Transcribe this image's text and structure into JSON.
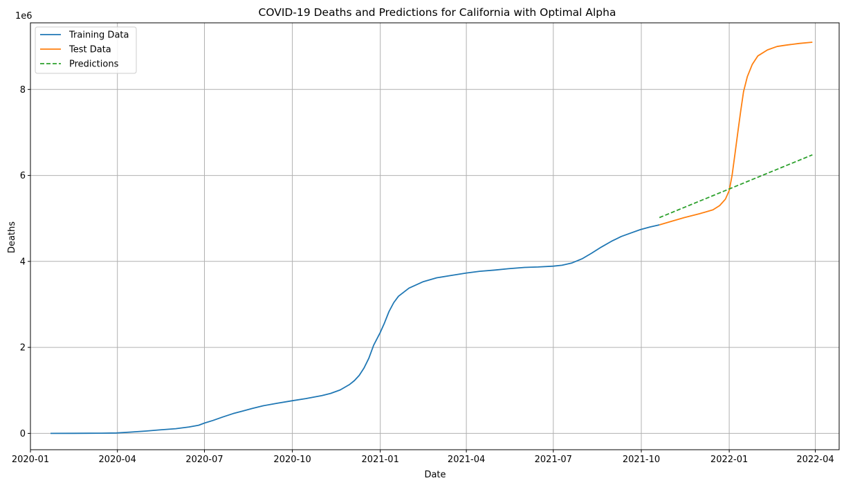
{
  "chart_data": {
    "type": "line",
    "title": "COVID-19 Deaths and Predictions for California with Optimal Alpha",
    "xlabel": "Date",
    "ylabel": "Deaths",
    "y_offset_label": "1e6",
    "y_scale_factor": 1000000,
    "xlim": [
      "2020-01-01",
      "2022-04-26"
    ],
    "ylim": [
      -380000,
      9550000
    ],
    "x_ticks": [
      "2020-01-01",
      "2020-04-01",
      "2020-07-01",
      "2020-10-01",
      "2021-01-01",
      "2021-04-01",
      "2021-07-01",
      "2021-10-01",
      "2022-01-01",
      "2022-04-01"
    ],
    "x_tick_labels": [
      "2020-01",
      "2020-04",
      "2020-07",
      "2020-10",
      "2021-01",
      "2021-04",
      "2021-07",
      "2021-10",
      "2022-01",
      "2022-04"
    ],
    "y_ticks": [
      0,
      2000000,
      4000000,
      6000000,
      8000000
    ],
    "y_tick_labels": [
      "0",
      "2",
      "4",
      "6",
      "8"
    ],
    "grid": true,
    "legend_position": "top-left",
    "series": [
      {
        "name": "Training Data",
        "color": "#1f77b4",
        "style": "solid",
        "points": [
          [
            "2020-01-22",
            0
          ],
          [
            "2020-02-15",
            1000
          ],
          [
            "2020-03-15",
            5000
          ],
          [
            "2020-03-31",
            10000
          ],
          [
            "2020-04-15",
            30000
          ],
          [
            "2020-05-01",
            55000
          ],
          [
            "2020-05-15",
            80000
          ],
          [
            "2020-06-01",
            110000
          ],
          [
            "2020-06-15",
            150000
          ],
          [
            "2020-06-25",
            190000
          ],
          [
            "2020-07-01",
            240000
          ],
          [
            "2020-07-10",
            300000
          ],
          [
            "2020-07-20",
            380000
          ],
          [
            "2020-07-31",
            460000
          ],
          [
            "2020-08-10",
            520000
          ],
          [
            "2020-08-20",
            580000
          ],
          [
            "2020-08-31",
            640000
          ],
          [
            "2020-09-15",
            700000
          ],
          [
            "2020-10-01",
            760000
          ],
          [
            "2020-10-15",
            810000
          ],
          [
            "2020-11-01",
            880000
          ],
          [
            "2020-11-10",
            930000
          ],
          [
            "2020-11-20",
            1010000
          ],
          [
            "2020-11-30",
            1140000
          ],
          [
            "2020-12-05",
            1230000
          ],
          [
            "2020-12-10",
            1350000
          ],
          [
            "2020-12-15",
            1520000
          ],
          [
            "2020-12-20",
            1750000
          ],
          [
            "2020-12-25",
            2050000
          ],
          [
            "2021-01-01",
            2350000
          ],
          [
            "2021-01-05",
            2550000
          ],
          [
            "2021-01-10",
            2830000
          ],
          [
            "2021-01-15",
            3040000
          ],
          [
            "2021-01-20",
            3190000
          ],
          [
            "2021-01-31",
            3380000
          ],
          [
            "2021-02-15",
            3530000
          ],
          [
            "2021-03-01",
            3620000
          ],
          [
            "2021-03-15",
            3670000
          ],
          [
            "2021-04-01",
            3730000
          ],
          [
            "2021-04-15",
            3770000
          ],
          [
            "2021-05-01",
            3800000
          ],
          [
            "2021-05-15",
            3830000
          ],
          [
            "2021-06-01",
            3860000
          ],
          [
            "2021-06-15",
            3870000
          ],
          [
            "2021-07-01",
            3890000
          ],
          [
            "2021-07-10",
            3910000
          ],
          [
            "2021-07-20",
            3960000
          ],
          [
            "2021-07-31",
            4060000
          ],
          [
            "2021-08-10",
            4190000
          ],
          [
            "2021-08-20",
            4330000
          ],
          [
            "2021-08-31",
            4470000
          ],
          [
            "2021-09-10",
            4580000
          ],
          [
            "2021-09-20",
            4660000
          ],
          [
            "2021-09-30",
            4740000
          ],
          [
            "2021-10-10",
            4800000
          ],
          [
            "2021-10-20",
            4850000
          ]
        ]
      },
      {
        "name": "Test Data",
        "color": "#ff7f0e",
        "style": "solid",
        "points": [
          [
            "2021-10-20",
            4850000
          ],
          [
            "2021-11-01",
            4930000
          ],
          [
            "2021-11-15",
            5020000
          ],
          [
            "2021-12-01",
            5110000
          ],
          [
            "2021-12-15",
            5200000
          ],
          [
            "2021-12-22",
            5300000
          ],
          [
            "2021-12-28",
            5450000
          ],
          [
            "2022-01-01",
            5650000
          ],
          [
            "2022-01-04",
            6000000
          ],
          [
            "2022-01-07",
            6500000
          ],
          [
            "2022-01-10",
            7000000
          ],
          [
            "2022-01-13",
            7500000
          ],
          [
            "2022-01-16",
            7950000
          ],
          [
            "2022-01-20",
            8300000
          ],
          [
            "2022-01-25",
            8580000
          ],
          [
            "2022-01-31",
            8780000
          ],
          [
            "2022-02-10",
            8920000
          ],
          [
            "2022-02-20",
            9000000
          ],
          [
            "2022-03-01",
            9030000
          ],
          [
            "2022-03-15",
            9070000
          ],
          [
            "2022-03-29",
            9100000
          ]
        ]
      },
      {
        "name": "Predictions",
        "color": "#2ca02c",
        "style": "dashed",
        "points": [
          [
            "2021-10-20",
            5020000
          ],
          [
            "2022-03-29",
            6480000
          ]
        ]
      }
    ]
  }
}
